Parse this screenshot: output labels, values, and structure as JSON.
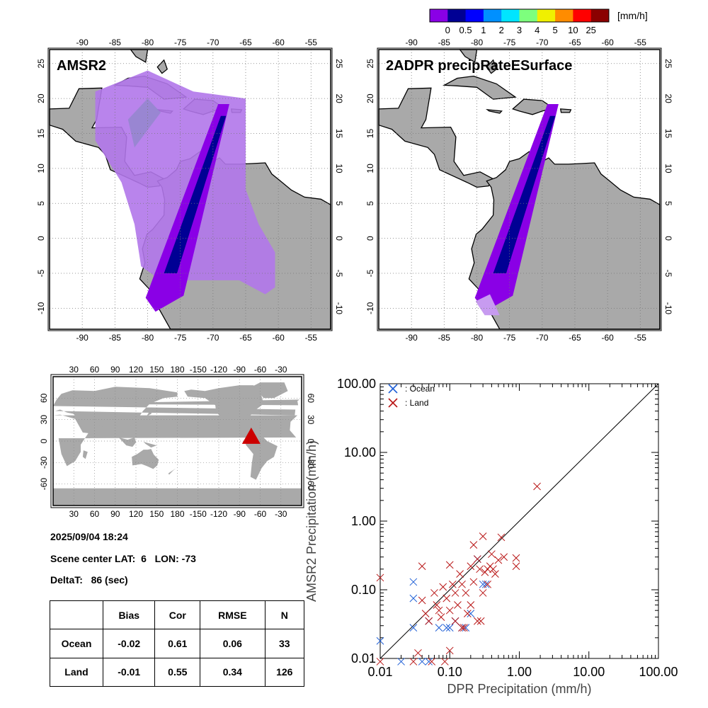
{
  "colorbar": {
    "unit": "[mm/h]",
    "colors": [
      "#8a00e6",
      "#000094",
      "#0000ff",
      "#0090ff",
      "#00e5ff",
      "#7dff7d",
      "#f0f000",
      "#ff8c00",
      "#ff0000",
      "#8b0000"
    ],
    "labels": [
      "0",
      "0.5",
      "1",
      "2",
      "3",
      "4",
      "5",
      "10",
      "25"
    ]
  },
  "map_left": {
    "title": "AMSR2",
    "lon_ticks": [
      "-90",
      "-85",
      "-80",
      "-75",
      "-70",
      "-65",
      "-60",
      "-55"
    ],
    "lat_ticks": [
      "25",
      "20",
      "15",
      "10",
      "5",
      "0",
      "-5",
      "-10"
    ]
  },
  "map_right": {
    "title": "2ADPR precipRateESurface",
    "lon_ticks": [
      "-90",
      "-85",
      "-80",
      "-75",
      "-70",
      "-65",
      "-60",
      "-55"
    ],
    "lat_ticks": [
      "25",
      "20",
      "15",
      "10",
      "5",
      "0",
      "-5",
      "-10"
    ]
  },
  "globe": {
    "lon_ticks": [
      "30",
      "60",
      "90",
      "120",
      "150",
      "180",
      "-150",
      "-120",
      "-90",
      "-60",
      "-30"
    ],
    "lat_ticks": [
      "60",
      "30",
      "0",
      "-30",
      "-60"
    ],
    "marker_color": "#cc0000"
  },
  "info": {
    "datetime": "2025/09/04 18:24",
    "scene_center": "Scene center LAT:  6   LON: -73",
    "delta_t": "DeltaT:   86 (sec)"
  },
  "stats_table": {
    "headers": [
      "Bias",
      "Cor",
      "RMSE",
      "N"
    ],
    "rows": [
      {
        "label": "Ocean",
        "values": [
          "-0.02",
          "0.61",
          "0.06",
          "33"
        ]
      },
      {
        "label": "Land",
        "values": [
          "-0.01",
          "0.55",
          "0.34",
          "126"
        ]
      }
    ]
  },
  "chart_data": {
    "type": "scatter",
    "xlabel": "DPR Precipitation (mm/h)",
    "ylabel": "AMSR2 Precipitation (mm/h)",
    "xlim": [
      0.01,
      100
    ],
    "ylim": [
      0.01,
      100
    ],
    "log_scale": true,
    "ticks": [
      "0.01",
      "0.10",
      "1.00",
      "10.00",
      "100.00"
    ],
    "legend": "top-left",
    "one_to_one_line": true,
    "series": [
      {
        "name": ": Ocean",
        "color": "#1f5fd6",
        "points": [
          [
            0.01,
            0.018
          ],
          [
            0.02,
            0.009
          ],
          [
            0.03,
            0.13
          ],
          [
            0.03,
            0.075
          ],
          [
            0.03,
            0.028
          ],
          [
            0.04,
            0.009
          ],
          [
            0.05,
            0.009
          ],
          [
            0.05,
            0.035
          ],
          [
            0.07,
            0.028
          ],
          [
            0.09,
            0.028
          ],
          [
            0.1,
            0.028
          ],
          [
            0.12,
            0.035
          ],
          [
            0.15,
            0.028
          ],
          [
            0.17,
            0.028
          ],
          [
            0.2,
            0.045
          ],
          [
            0.25,
            0.28
          ],
          [
            0.3,
            0.12
          ],
          [
            0.33,
            0.12
          ]
        ]
      },
      {
        "name": ": Land",
        "color": "#b81414",
        "points": [
          [
            0.01,
            0.15
          ],
          [
            0.01,
            0.009
          ],
          [
            0.03,
            0.009
          ],
          [
            0.035,
            0.012
          ],
          [
            0.04,
            0.22
          ],
          [
            0.04,
            0.07
          ],
          [
            0.045,
            0.045
          ],
          [
            0.05,
            0.035
          ],
          [
            0.055,
            0.009
          ],
          [
            0.06,
            0.09
          ],
          [
            0.065,
            0.06
          ],
          [
            0.07,
            0.05
          ],
          [
            0.075,
            0.04
          ],
          [
            0.08,
            0.11
          ],
          [
            0.085,
            0.009
          ],
          [
            0.09,
            0.075
          ],
          [
            0.1,
            0.23
          ],
          [
            0.1,
            0.05
          ],
          [
            0.1,
            0.013
          ],
          [
            0.11,
            0.12
          ],
          [
            0.12,
            0.09
          ],
          [
            0.12,
            0.035
          ],
          [
            0.13,
            0.06
          ],
          [
            0.14,
            0.17
          ],
          [
            0.15,
            0.12
          ],
          [
            0.15,
            0.028
          ],
          [
            0.16,
            0.028
          ],
          [
            0.17,
            0.09
          ],
          [
            0.18,
            0.045
          ],
          [
            0.2,
            0.06
          ],
          [
            0.2,
            0.22
          ],
          [
            0.22,
            0.13
          ],
          [
            0.22,
            0.45
          ],
          [
            0.25,
            0.035
          ],
          [
            0.25,
            0.28
          ],
          [
            0.27,
            0.2
          ],
          [
            0.28,
            0.035
          ],
          [
            0.3,
            0.6
          ],
          [
            0.3,
            0.09
          ],
          [
            0.32,
            0.18
          ],
          [
            0.35,
            0.2
          ],
          [
            0.35,
            0.12
          ],
          [
            0.38,
            0.22
          ],
          [
            0.4,
            0.33
          ],
          [
            0.42,
            0.2
          ],
          [
            0.45,
            0.17
          ],
          [
            0.5,
            0.27
          ],
          [
            0.55,
            0.58
          ],
          [
            0.6,
            0.3
          ],
          [
            0.9,
            0.22
          ],
          [
            0.9,
            0.29
          ],
          [
            1.8,
            3.2
          ]
        ]
      }
    ]
  }
}
